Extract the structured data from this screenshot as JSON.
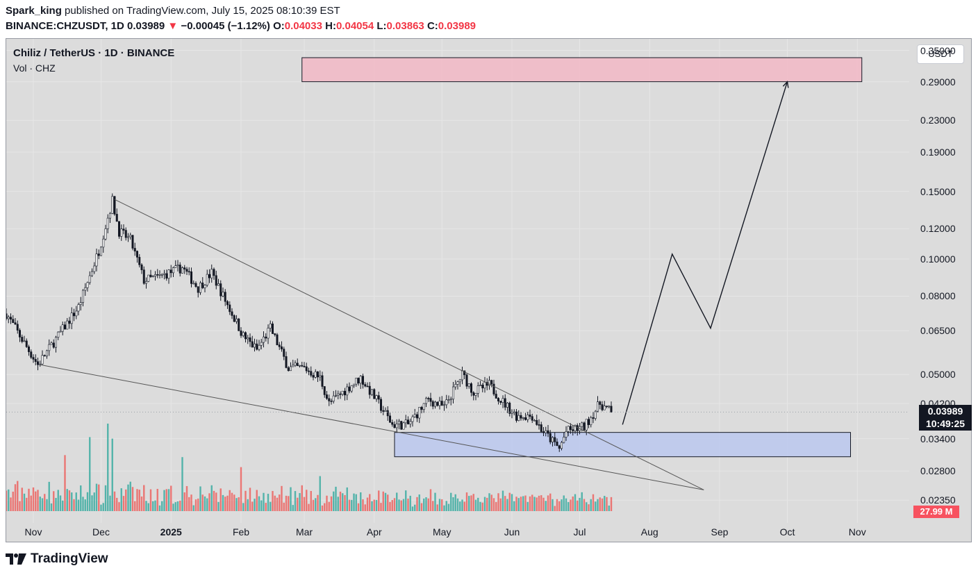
{
  "header": {
    "author": "Spark_king",
    "published_text": "published on TradingView.com, July 15, 2025 08:10:39 EST",
    "symbol": "BINANCE:CHZUSDT, 1D",
    "last": "0.03989",
    "arrow": "▼",
    "change": "−0.00045 (−1.12%)",
    "open_label": "O:",
    "open": "0.04033",
    "high_label": "H:",
    "high": "0.04054",
    "low_label": "L:",
    "low": "0.03863",
    "close_label": "C:",
    "close": "0.03989"
  },
  "legend": {
    "title": "Chiliz / TetherUS · 1D · BINANCE",
    "volume": "Vol · CHZ"
  },
  "currency_button": "USDT",
  "price_label": {
    "price": "0.03989",
    "countdown": "10:49:25"
  },
  "volume_label": "27.99 M",
  "footer": {
    "brand": "TradingView"
  },
  "colors": {
    "up": "#26a69a",
    "down": "#ef5350",
    "candle": "#131722",
    "pane_bg": "#dcdcdc",
    "resistance_zone": "#f2b8c6",
    "support_zone": "#bbc8ef",
    "accent_red": "#f23645"
  },
  "chart_data": {
    "type": "candlestick",
    "title": "Chiliz / TetherUS · 1D · BINANCE",
    "scale": "log",
    "ylim": [
      0.0205,
      0.375
    ],
    "y_ticks": [
      0.35,
      0.29,
      0.23,
      0.19,
      0.15,
      0.12,
      0.1,
      0.08,
      0.065,
      0.05,
      0.042,
      0.034,
      0.028,
      0.0235
    ],
    "y_tick_labels": [
      "0.35000",
      "0.29000",
      "0.23000",
      "0.19000",
      "0.15000",
      "0.12000",
      "0.10000",
      "0.08000",
      "0.06500",
      "0.05000",
      "0.04200",
      "0.03400",
      "0.02800",
      "0.02350"
    ],
    "x_ticks": [
      {
        "label": "Nov",
        "date": "2024-11-01"
      },
      {
        "label": "Dec",
        "date": "2024-12-01"
      },
      {
        "label": "2025",
        "date": "2025-01-01",
        "year": true
      },
      {
        "label": "Feb",
        "date": "2025-02-01"
      },
      {
        "label": "Mar",
        "date": "2025-03-01"
      },
      {
        "label": "Apr",
        "date": "2025-04-01"
      },
      {
        "label": "May",
        "date": "2025-05-01"
      },
      {
        "label": "Jun",
        "date": "2025-06-01"
      },
      {
        "label": "Jul",
        "date": "2025-07-01"
      },
      {
        "label": "Aug",
        "date": "2025-08-01"
      },
      {
        "label": "Sep",
        "date": "2025-09-01"
      },
      {
        "label": "Oct",
        "date": "2025-10-01"
      },
      {
        "label": "Nov",
        "date": "2025-11-01"
      }
    ],
    "price_keypoints": [
      {
        "date": "2024-10-20",
        "price": 0.072
      },
      {
        "date": "2024-10-29",
        "price": 0.059
      },
      {
        "date": "2024-11-03",
        "price": 0.053
      },
      {
        "date": "2024-11-12",
        "price": 0.063
      },
      {
        "date": "2024-11-21",
        "price": 0.075
      },
      {
        "date": "2024-11-30",
        "price": 0.105
      },
      {
        "date": "2024-12-06",
        "price": 0.142
      },
      {
        "date": "2024-12-09",
        "price": 0.118
      },
      {
        "date": "2024-12-14",
        "price": 0.112
      },
      {
        "date": "2024-12-20",
        "price": 0.088
      },
      {
        "date": "2024-12-27",
        "price": 0.09
      },
      {
        "date": "2025-01-06",
        "price": 0.095
      },
      {
        "date": "2025-01-13",
        "price": 0.084
      },
      {
        "date": "2025-01-19",
        "price": 0.092
      },
      {
        "date": "2025-01-25",
        "price": 0.078
      },
      {
        "date": "2025-02-02",
        "price": 0.063
      },
      {
        "date": "2025-02-08",
        "price": 0.058
      },
      {
        "date": "2025-02-14",
        "price": 0.066
      },
      {
        "date": "2025-02-22",
        "price": 0.052
      },
      {
        "date": "2025-03-01",
        "price": 0.052
      },
      {
        "date": "2025-03-08",
        "price": 0.049
      },
      {
        "date": "2025-03-12",
        "price": 0.042
      },
      {
        "date": "2025-03-22",
        "price": 0.047
      },
      {
        "date": "2025-03-26",
        "price": 0.049
      },
      {
        "date": "2025-04-03",
        "price": 0.042
      },
      {
        "date": "2025-04-09",
        "price": 0.037
      },
      {
        "date": "2025-04-16",
        "price": 0.037
      },
      {
        "date": "2025-04-25",
        "price": 0.043
      },
      {
        "date": "2025-05-02",
        "price": 0.041
      },
      {
        "date": "2025-05-10",
        "price": 0.05
      },
      {
        "date": "2025-05-15",
        "price": 0.045
      },
      {
        "date": "2025-05-22",
        "price": 0.047
      },
      {
        "date": "2025-05-27",
        "price": 0.043
      },
      {
        "date": "2025-06-03",
        "price": 0.039
      },
      {
        "date": "2025-06-10",
        "price": 0.039
      },
      {
        "date": "2025-06-14",
        "price": 0.036
      },
      {
        "date": "2025-06-22",
        "price": 0.032
      },
      {
        "date": "2025-06-25",
        "price": 0.0355
      },
      {
        "date": "2025-07-03",
        "price": 0.0365
      },
      {
        "date": "2025-07-10",
        "price": 0.042
      },
      {
        "date": "2025-07-15",
        "price": 0.0399
      }
    ],
    "volume_unit": "M CHZ",
    "last_volume": 27.99,
    "volume_spikes": [
      {
        "date": "2024-11-15",
        "value": 112
      },
      {
        "date": "2024-11-26",
        "value": 148
      },
      {
        "date": "2024-12-04",
        "value": 175
      },
      {
        "date": "2024-12-06",
        "value": 145
      },
      {
        "date": "2025-01-06",
        "value": 108
      },
      {
        "date": "2025-02-01",
        "value": 88
      },
      {
        "date": "2025-03-08",
        "value": 70
      }
    ],
    "annotations": [
      {
        "type": "trendline",
        "label": "wedge-upper",
        "from": {
          "date": "2024-12-07",
          "price": 0.143
        },
        "to": {
          "date": "2025-08-25",
          "price": 0.025
        }
      },
      {
        "type": "trendline",
        "label": "wedge-lower",
        "from": {
          "date": "2024-11-04",
          "price": 0.053
        },
        "to": {
          "date": "2025-08-25",
          "price": 0.025
        }
      },
      {
        "type": "zone",
        "label": "resistance-zone",
        "from_date": "2025-02-28",
        "to_date": "2025-11-03",
        "low": 0.29,
        "high": 0.335
      },
      {
        "type": "zone",
        "label": "support-zone",
        "from_date": "2025-04-10",
        "to_date": "2025-10-29",
        "low": 0.0305,
        "high": 0.0353
      },
      {
        "type": "projection-path",
        "points": [
          {
            "date": "2025-07-20",
            "price": 0.037
          },
          {
            "date": "2025-08-11",
            "price": 0.103
          },
          {
            "date": "2025-08-28",
            "price": 0.066
          },
          {
            "date": "2025-10-01",
            "price": 0.29
          }
        ]
      }
    ]
  }
}
